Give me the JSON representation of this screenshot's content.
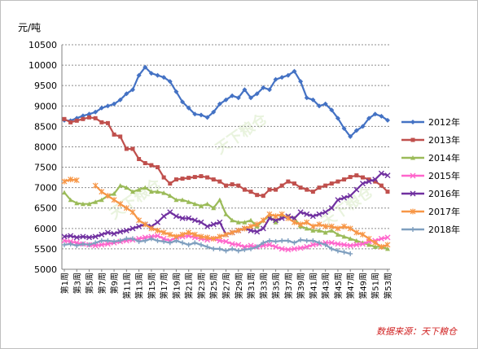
{
  "unit_label": "元/吨",
  "source": "数据来源：天下粮仓",
  "watermark": "天下粮仓",
  "chart_data": {
    "type": "line",
    "title": "",
    "xlabel": "",
    "ylabel": "元/吨",
    "ylim": [
      5000,
      10500
    ],
    "ystep": 500,
    "grid": true,
    "legend": "right",
    "x_tick_labels": [
      "第1周",
      "第3周",
      "第5周",
      "第7周",
      "第9周",
      "第11周",
      "第13周",
      "第15周",
      "第17周",
      "第19周",
      "第21周",
      "第23周",
      "第25周",
      "第27周",
      "第29周",
      "第31周",
      "第33周",
      "第35周",
      "第37周",
      "第39周",
      "第41周",
      "第43周",
      "第45周",
      "第47周",
      "第49周",
      "第51周",
      "第53周"
    ],
    "weeks": [
      1,
      2,
      3,
      4,
      5,
      6,
      7,
      8,
      9,
      10,
      11,
      12,
      13,
      14,
      15,
      16,
      17,
      18,
      19,
      20,
      21,
      22,
      23,
      24,
      25,
      26,
      27,
      28,
      29,
      30,
      31,
      32,
      33,
      34,
      35,
      36,
      37,
      38,
      39,
      40,
      41,
      42,
      43,
      44,
      45,
      46,
      47,
      48,
      49,
      50,
      51,
      52,
      53
    ],
    "series": [
      {
        "name": "2012年",
        "color": "#4472c4",
        "marker": "diamond",
        "values": [
          8650,
          8640,
          8700,
          8760,
          8800,
          8850,
          8950,
          9000,
          9050,
          9150,
          9300,
          9400,
          9750,
          9950,
          9800,
          9750,
          9700,
          9600,
          9350,
          9100,
          8950,
          8800,
          8780,
          8720,
          8850,
          9050,
          9150,
          9250,
          9200,
          9400,
          9200,
          9300,
          9450,
          9400,
          9650,
          9700,
          9750,
          9850,
          9600,
          9200,
          9150,
          9000,
          9050,
          8900,
          8700,
          8450,
          8250,
          8400,
          8500,
          8700,
          8800,
          8750,
          8650
        ]
      },
      {
        "name": "2013年",
        "color": "#c0504d",
        "marker": "square",
        "values": [
          8680,
          8600,
          8640,
          8680,
          8720,
          8700,
          8600,
          8580,
          8300,
          8250,
          7950,
          7950,
          7700,
          7600,
          7550,
          7500,
          7250,
          7100,
          7200,
          7220,
          7240,
          7260,
          7280,
          7250,
          7200,
          7150,
          7050,
          7080,
          7050,
          6950,
          6900,
          6820,
          6800,
          6950,
          6950,
          7050,
          7150,
          7100,
          7000,
          6950,
          6900,
          7000,
          7050,
          7100,
          7150,
          7200,
          7260,
          7300,
          7250,
          7200,
          7150,
          7050,
          6900
        ]
      },
      {
        "name": "2014年",
        "color": "#9bbb59",
        "marker": "triangle",
        "values": [
          6880,
          6700,
          6620,
          6600,
          6600,
          6650,
          6700,
          6800,
          6850,
          7050,
          7000,
          6900,
          6950,
          7000,
          6900,
          6900,
          6870,
          6800,
          6700,
          6700,
          6650,
          6600,
          6550,
          6600,
          6500,
          6700,
          6350,
          6200,
          6150,
          6150,
          6200,
          6050,
          6200,
          6300,
          6150,
          6300,
          6300,
          6250,
          6050,
          6000,
          5950,
          5950,
          5900,
          5950,
          5850,
          5800,
          5750,
          5700,
          5650,
          5600,
          5550,
          5550,
          5500
        ]
      },
      {
        "name": "2015年",
        "color": "#ff66cc",
        "marker": "x",
        "values": [
          5700,
          5680,
          5650,
          5620,
          5600,
          5580,
          5600,
          5620,
          5650,
          5680,
          5700,
          5720,
          5750,
          5780,
          5800,
          5820,
          5750,
          5700,
          5780,
          5800,
          5820,
          5780,
          5750,
          5720,
          5750,
          5700,
          5680,
          5620,
          5600,
          5550,
          5580,
          5550,
          5580,
          5600,
          5550,
          5500,
          5480,
          5500,
          5520,
          5550,
          5600,
          5620,
          5650,
          5650,
          5620,
          5600,
          5580,
          5600,
          5620,
          5680,
          5700,
          5750,
          5780
        ]
      },
      {
        "name": "2016年",
        "color": "#7030a0",
        "marker": "x",
        "values": [
          5800,
          5820,
          5780,
          5800,
          5780,
          5800,
          5850,
          5900,
          5870,
          5920,
          5950,
          6000,
          6050,
          6100,
          6050,
          6150,
          6300,
          6400,
          6300,
          6250,
          6250,
          6200,
          6150,
          6050,
          6100,
          6150,
          5850,
          5900,
          5950,
          6000,
          5950,
          5920,
          6000,
          6250,
          6200,
          6250,
          6300,
          6250,
          6400,
          6350,
          6300,
          6350,
          6400,
          6500,
          6700,
          6750,
          6800,
          6950,
          7100,
          7150,
          7200,
          7350,
          7300
        ]
      },
      {
        "name": "2017年",
        "color": "#f79646",
        "marker": "star",
        "values": [
          7150,
          7200,
          7180,
          null,
          null,
          7050,
          6900,
          6800,
          6700,
          6600,
          6500,
          6400,
          6200,
          6100,
          6000,
          5950,
          5900,
          5850,
          5800,
          5850,
          5900,
          5850,
          5800,
          5780,
          5750,
          5800,
          5850,
          5900,
          5950,
          6000,
          6050,
          6100,
          6200,
          6350,
          6300,
          6350,
          6250,
          6150,
          6100,
          6150,
          6050,
          6100,
          6050,
          6050,
          6000,
          6050,
          6000,
          5900,
          5850,
          5750,
          5650,
          5550,
          5600
        ]
      },
      {
        "name": "2018年",
        "color": "#7f9fbf",
        "marker": "cross",
        "values": [
          5600,
          5620,
          5580,
          5620,
          5600,
          5650,
          5700,
          5700,
          5680,
          5700,
          5750,
          5750,
          5680,
          5700,
          5750,
          5700,
          5680,
          5650,
          5700,
          5650,
          5600,
          5650,
          5600,
          5550,
          5500,
          5500,
          5450,
          5500,
          5450,
          5480,
          5500,
          5550,
          5650,
          5700,
          5680,
          5700,
          5700,
          5650,
          5720,
          5700,
          5700,
          5650,
          5600,
          5500,
          5450,
          5420,
          5380,
          null,
          null,
          null,
          null,
          null,
          null
        ]
      }
    ]
  }
}
